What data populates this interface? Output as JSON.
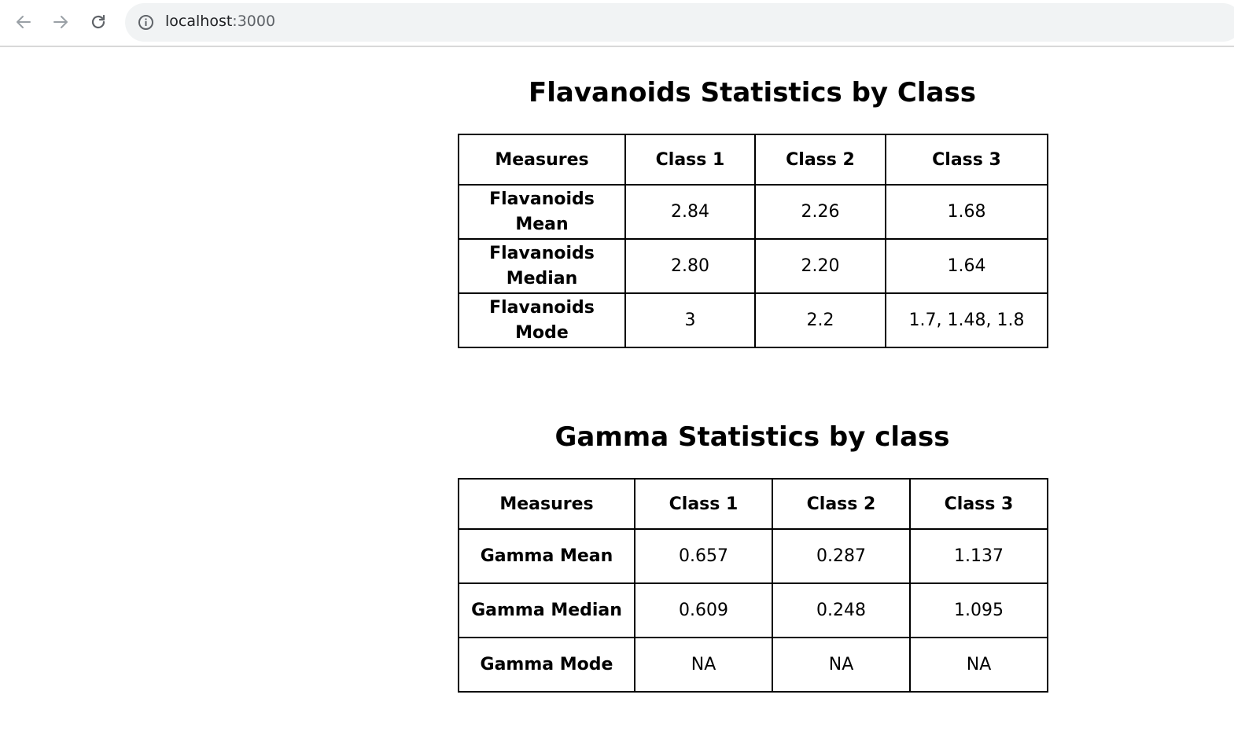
{
  "browser": {
    "url_host": "localhost",
    "url_port": ":3000"
  },
  "flavanoids": {
    "title": "Flavanoids Statistics by Class",
    "headers": [
      "Measures",
      "Class 1",
      "Class 2",
      "Class 3"
    ],
    "rows": [
      {
        "measure": "Flavanoids Mean",
        "values": [
          "2.84",
          "2.26",
          "1.68"
        ]
      },
      {
        "measure": "Flavanoids Median",
        "values": [
          "2.80",
          "2.20",
          "1.64"
        ]
      },
      {
        "measure": "Flavanoids Mode",
        "values": [
          "3",
          "2.2",
          "1.7, 1.48, 1.8"
        ]
      }
    ]
  },
  "gamma": {
    "title": "Gamma Statistics by class",
    "headers": [
      "Measures",
      "Class 1",
      "Class 2",
      "Class 3"
    ],
    "rows": [
      {
        "measure": "Gamma Mean",
        "values": [
          "0.657",
          "0.287",
          "1.137"
        ]
      },
      {
        "measure": "Gamma Median",
        "values": [
          "0.609",
          "0.248",
          "1.095"
        ]
      },
      {
        "measure": "Gamma Mode",
        "values": [
          "NA",
          "NA",
          "NA"
        ]
      }
    ]
  }
}
